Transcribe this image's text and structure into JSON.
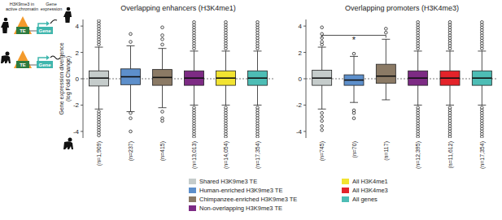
{
  "chart_data": [
    {
      "type": "box",
      "title": "Overlapping enhancers (H3K4me1)",
      "ylabel": [
        "Gene expression divergence",
        "(log Fold Change)"
      ],
      "categories": [
        "(n=1,909)",
        "(n=237)",
        "(n=415)",
        "(n=13,013)",
        "(n=14,054)",
        "(n=17,354)"
      ],
      "colors": [
        "#c5cccb",
        "#5d8fcb",
        "#8b7a65",
        "#7d2b84",
        "#f2e331",
        "#4dbdb5"
      ],
      "ylim": [
        -4.5,
        4.5
      ],
      "yticks": [
        -4,
        -2,
        0,
        2,
        4
      ],
      "reference_y": 0,
      "boxes": [
        {
          "whisker_low": -2.3,
          "q1": -0.55,
          "median": 0.05,
          "q3": 0.6,
          "whisker_high": 2.4,
          "outliers": [
            -2.5,
            -2.7,
            -2.9,
            -3.1,
            -3.3,
            -3.5,
            -3.7,
            -3.9,
            -4.1,
            -4.3,
            2.6,
            2.8,
            3.0,
            3.2,
            3.4,
            3.6,
            3.8,
            4.0,
            4.2,
            4.4
          ]
        },
        {
          "whisker_low": -2.5,
          "q1": -0.45,
          "median": 0.15,
          "q3": 0.75,
          "whisker_high": 2.5,
          "outliers": [
            -2.6,
            -3.0,
            -4.0,
            2.8,
            3.4
          ]
        },
        {
          "whisker_low": -2.2,
          "q1": -0.5,
          "median": 0.1,
          "q3": 0.7,
          "whisker_high": 2.3,
          "outliers": [
            -2.5,
            -3.0,
            -3.2,
            2.6,
            3.0,
            3.3,
            3.9
          ]
        },
        {
          "whisker_low": -2.0,
          "q1": -0.5,
          "median": 0.05,
          "q3": 0.6,
          "whisker_high": 2.1,
          "outliers": [
            -2.2,
            -2.4,
            -2.6,
            -2.8,
            -3.0,
            -3.2,
            -3.4,
            -3.6,
            -3.8,
            -4.0,
            -4.2,
            -4.4,
            2.3,
            2.5,
            2.7,
            2.9,
            3.1,
            3.3,
            3.5,
            3.7,
            3.9,
            4.1,
            4.3
          ]
        },
        {
          "whisker_low": -2.0,
          "q1": -0.5,
          "median": 0.05,
          "q3": 0.6,
          "whisker_high": 2.1,
          "outliers": [
            -2.2,
            -2.4,
            -2.6,
            -2.8,
            -3.0,
            -3.2,
            -3.4,
            -3.6,
            -3.8,
            -4.0,
            -4.2,
            -4.4,
            2.3,
            2.5,
            2.7,
            2.9,
            3.1,
            3.3,
            3.5,
            3.7,
            3.9,
            4.1,
            4.3
          ]
        },
        {
          "whisker_low": -2.0,
          "q1": -0.5,
          "median": 0.05,
          "q3": 0.6,
          "whisker_high": 2.1,
          "outliers": [
            -2.2,
            -2.4,
            -2.6,
            -2.8,
            -3.0,
            -3.2,
            -3.4,
            -3.6,
            -3.8,
            -4.0,
            -4.2,
            -4.4,
            2.3,
            2.5,
            2.7,
            2.9,
            3.1,
            3.3,
            3.5,
            3.7,
            3.9,
            4.1,
            4.3
          ]
        }
      ]
    },
    {
      "type": "box",
      "title": "Overlapping promoters (H3K4me3)",
      "categories": [
        "(n=745)",
        "(n=70)",
        "(n=117)",
        "(n=12,395)",
        "(n=11,612)",
        "(n=17,354)"
      ],
      "colors": [
        "#c5cccb",
        "#5d8fcb",
        "#8b7a65",
        "#7d2b84",
        "#e4232a",
        "#4dbdb5"
      ],
      "ylim": [
        -4.5,
        4.5
      ],
      "yticks": [
        -4,
        -2,
        0,
        2,
        4
      ],
      "reference_y": 0,
      "annotations": [
        {
          "text": "*",
          "from": 0,
          "to": 2,
          "y": 3.3
        }
      ],
      "boxes": [
        {
          "whisker_low": -2.3,
          "q1": -0.5,
          "median": 0.05,
          "q3": 0.65,
          "whisker_high": 2.4,
          "outliers": [
            -2.6,
            -2.9,
            -3.2,
            -3.6,
            -3.9,
            2.6,
            2.8,
            3.1,
            3.4,
            3.9
          ]
        },
        {
          "whisker_low": -1.8,
          "q1": -0.5,
          "median": -0.1,
          "q3": 0.3,
          "whisker_high": 1.7,
          "outliers": [
            -2.4,
            -2.6,
            -3.0,
            1.9
          ]
        },
        {
          "whisker_low": -1.6,
          "q1": -0.35,
          "median": 0.2,
          "q3": 1.1,
          "whisker_high": 3.0,
          "outliers": [
            3.5,
            3.8
          ]
        },
        {
          "whisker_low": -2.0,
          "q1": -0.5,
          "median": 0.05,
          "q3": 0.6,
          "whisker_high": 2.1,
          "outliers": [
            -2.2,
            -2.4,
            -2.6,
            -2.8,
            -3.0,
            -3.2,
            -3.4,
            -3.6,
            -3.8,
            -4.0,
            -4.2,
            -4.4,
            2.3,
            2.5,
            2.7,
            2.9,
            3.1,
            3.3,
            3.5,
            3.7,
            3.9,
            4.1,
            4.3
          ]
        },
        {
          "whisker_low": -2.0,
          "q1": -0.5,
          "median": 0.05,
          "q3": 0.6,
          "whisker_high": 2.1,
          "outliers": [
            -2.2,
            -2.4,
            -2.6,
            -2.8,
            -3.0,
            -3.2,
            -3.4,
            -3.6,
            -3.8,
            -4.0,
            -4.2,
            -4.4,
            2.3,
            2.5,
            2.7,
            2.9,
            3.1,
            3.3,
            3.5,
            3.7,
            3.9,
            4.1,
            4.3
          ]
        },
        {
          "whisker_low": -2.0,
          "q1": -0.5,
          "median": 0.05,
          "q3": 0.6,
          "whisker_high": 2.1,
          "outliers": [
            -2.2,
            -2.4,
            -2.6,
            -2.8,
            -3.0,
            -3.2,
            -3.4,
            -3.6,
            -3.8,
            -4.0,
            -4.2,
            -4.4,
            2.3,
            2.5,
            2.7,
            2.9,
            3.1,
            3.3,
            3.5,
            3.7,
            3.9,
            4.1,
            4.3
          ]
        }
      ]
    }
  ],
  "legend": [
    {
      "name": "Shared H3K9me3 TE",
      "color": "#c5cccb"
    },
    {
      "name": "Human-enriched H3K9me3 TE",
      "color": "#5d8fcb"
    },
    {
      "name": "Chimpanzee-enriched H3K9me3 TE",
      "color": "#8b7a65"
    },
    {
      "name": "Non-overlapping H3K9me3 TE",
      "color": "#7d2b84"
    },
    {
      "name": "All H3K4me1",
      "color": "#f2e331"
    },
    {
      "name": "All H3K4me3",
      "color": "#e4232a"
    },
    {
      "name": "All genes",
      "color": "#4dbdb5"
    }
  ],
  "schematic": {
    "chromatin_label": [
      "H3K9me3 in",
      "active chromatin"
    ],
    "expression_label": [
      "Gene",
      "expression"
    ],
    "te": "TE",
    "gene": "Gene"
  }
}
